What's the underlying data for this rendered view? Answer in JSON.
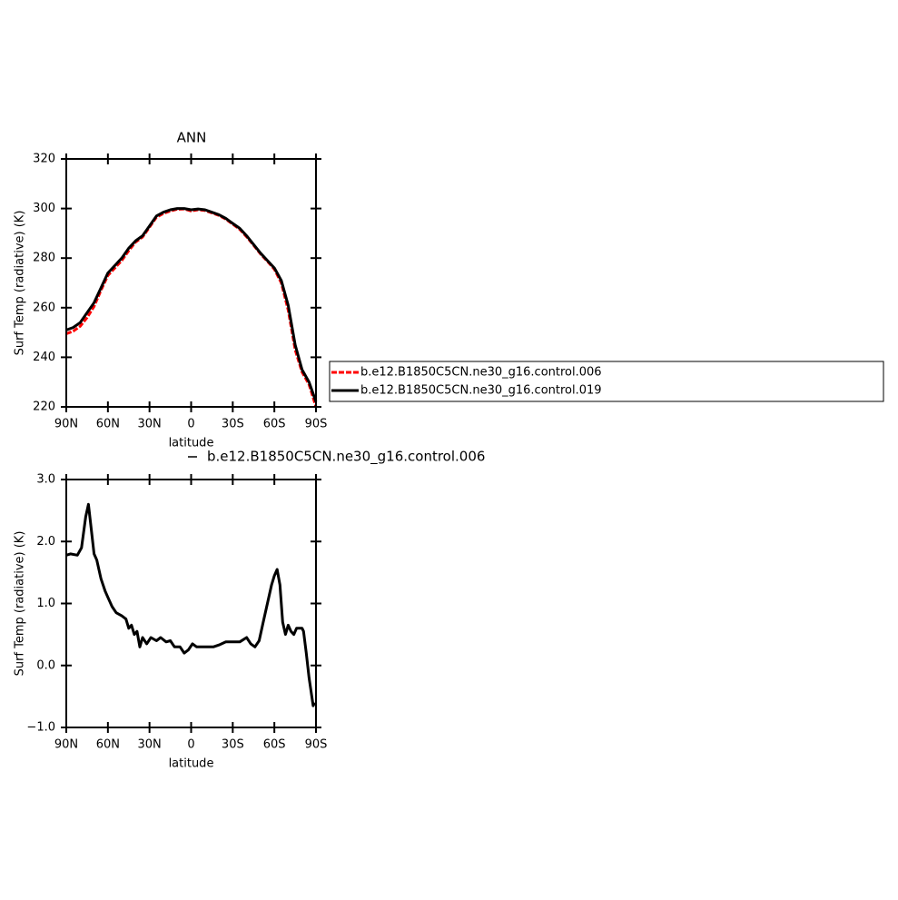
{
  "chart_data": [
    {
      "type": "line",
      "title": "ANN",
      "x_label": "latitude",
      "y_label": "Surf Temp (radiative) (K)",
      "x": [
        90,
        85,
        80,
        75,
        70,
        65,
        60,
        55,
        50,
        45,
        40,
        35,
        30,
        25,
        20,
        15,
        10,
        5,
        0,
        -5,
        -10,
        -15,
        -20,
        -25,
        -30,
        -35,
        -40,
        -45,
        -50,
        -55,
        -60,
        -65,
        -70,
        -75,
        -80,
        -85,
        -90
      ],
      "series": [
        {
          "name": "b.e12.B1850C5CN.ne30_g16.control.006",
          "color": "#ff0000",
          "style": "dashed",
          "values": [
            249.5,
            250.5,
            252.5,
            256,
            260.5,
            267,
            273,
            276,
            279,
            283,
            286.5,
            288.5,
            292.5,
            296.5,
            298,
            299,
            299.7,
            299.8,
            299,
            299.5,
            299.2,
            298.2,
            297.2,
            295.7,
            293.7,
            291.6,
            288.6,
            285.2,
            281.7,
            278.7,
            275.5,
            270,
            259,
            243,
            234,
            229,
            220
          ]
        },
        {
          "name": "b.e12.B1850C5CN.ne30_g16.control.019",
          "color": "#000000",
          "style": "solid",
          "values": [
            251,
            252,
            254,
            258,
            262,
            268,
            274,
            277,
            280,
            284,
            287,
            289,
            293,
            297,
            298.5,
            299.5,
            300,
            300,
            299.5,
            299.8,
            299.5,
            298.5,
            297.5,
            296,
            294,
            292,
            289,
            285.5,
            282,
            279,
            276,
            271,
            261,
            245,
            235,
            230,
            222
          ]
        }
      ],
      "xlim": [
        90,
        -90
      ],
      "xticks": [
        {
          "value": 90,
          "label": "90N"
        },
        {
          "value": 60,
          "label": "60N"
        },
        {
          "value": 30,
          "label": "30N"
        },
        0,
        {
          "value": -30,
          "label": "30S"
        },
        {
          "value": -60,
          "label": "60S"
        },
        {
          "value": -90,
          "label": "90S"
        }
      ],
      "ylim": [
        220,
        320
      ],
      "yticks": [
        220,
        240,
        260,
        280,
        300,
        320
      ],
      "legend": "right"
    },
    {
      "type": "line",
      "title": "b.e12.B1850C5CN.ne30_g16.control.006",
      "x_label": "latitude",
      "y_label": "Surf Temp (radiative) (K)",
      "x": [
        90,
        87,
        82,
        79,
        76,
        74,
        72,
        70,
        68,
        65,
        62,
        60,
        57,
        54,
        50,
        47,
        45,
        43,
        41,
        39,
        37,
        35,
        32,
        29,
        25,
        22,
        18,
        15,
        12,
        8,
        5,
        2,
        -1,
        -4,
        -8,
        -12,
        -16,
        -20,
        -25,
        -30,
        -35,
        -40,
        -43,
        -46,
        -49,
        -52,
        -55,
        -58,
        -60,
        -62,
        -64,
        -66,
        -68,
        -70,
        -72,
        -74,
        -76,
        -78,
        -80,
        -81,
        -83,
        -85,
        -87,
        -88,
        -89
      ],
      "values": [
        1.78,
        1.8,
        1.78,
        1.9,
        2.4,
        2.6,
        2.2,
        1.8,
        1.7,
        1.4,
        1.2,
        1.1,
        0.95,
        0.85,
        0.8,
        0.75,
        0.6,
        0.65,
        0.5,
        0.55,
        0.3,
        0.45,
        0.35,
        0.45,
        0.4,
        0.45,
        0.38,
        0.4,
        0.3,
        0.3,
        0.2,
        0.25,
        0.35,
        0.3,
        0.3,
        0.3,
        0.3,
        0.33,
        0.38,
        0.38,
        0.38,
        0.45,
        0.35,
        0.3,
        0.4,
        0.7,
        1.0,
        1.3,
        1.45,
        1.55,
        1.3,
        0.7,
        0.5,
        0.65,
        0.55,
        0.5,
        0.6,
        0.6,
        0.6,
        0.55,
        0.2,
        -0.2,
        -0.5,
        -0.65,
        -0.6
      ],
      "color": "#000000",
      "xlim": [
        90,
        -90
      ],
      "xticks": [
        {
          "value": 90,
          "label": "90N"
        },
        {
          "value": 60,
          "label": "60N"
        },
        {
          "value": 30,
          "label": "30N"
        },
        0,
        {
          "value": -30,
          "label": "30S"
        },
        {
          "value": -60,
          "label": "60S"
        },
        {
          "value": -90,
          "label": "90S"
        }
      ],
      "ylim": [
        -1,
        3
      ],
      "yticks": [
        {
          "value": -1,
          "label": "−1.0"
        },
        {
          "value": 0,
          "label": "0.0"
        },
        {
          "value": 1,
          "label": "1.0"
        },
        {
          "value": 2,
          "label": "2.0"
        },
        {
          "value": 3,
          "label": "3.0"
        }
      ]
    }
  ]
}
